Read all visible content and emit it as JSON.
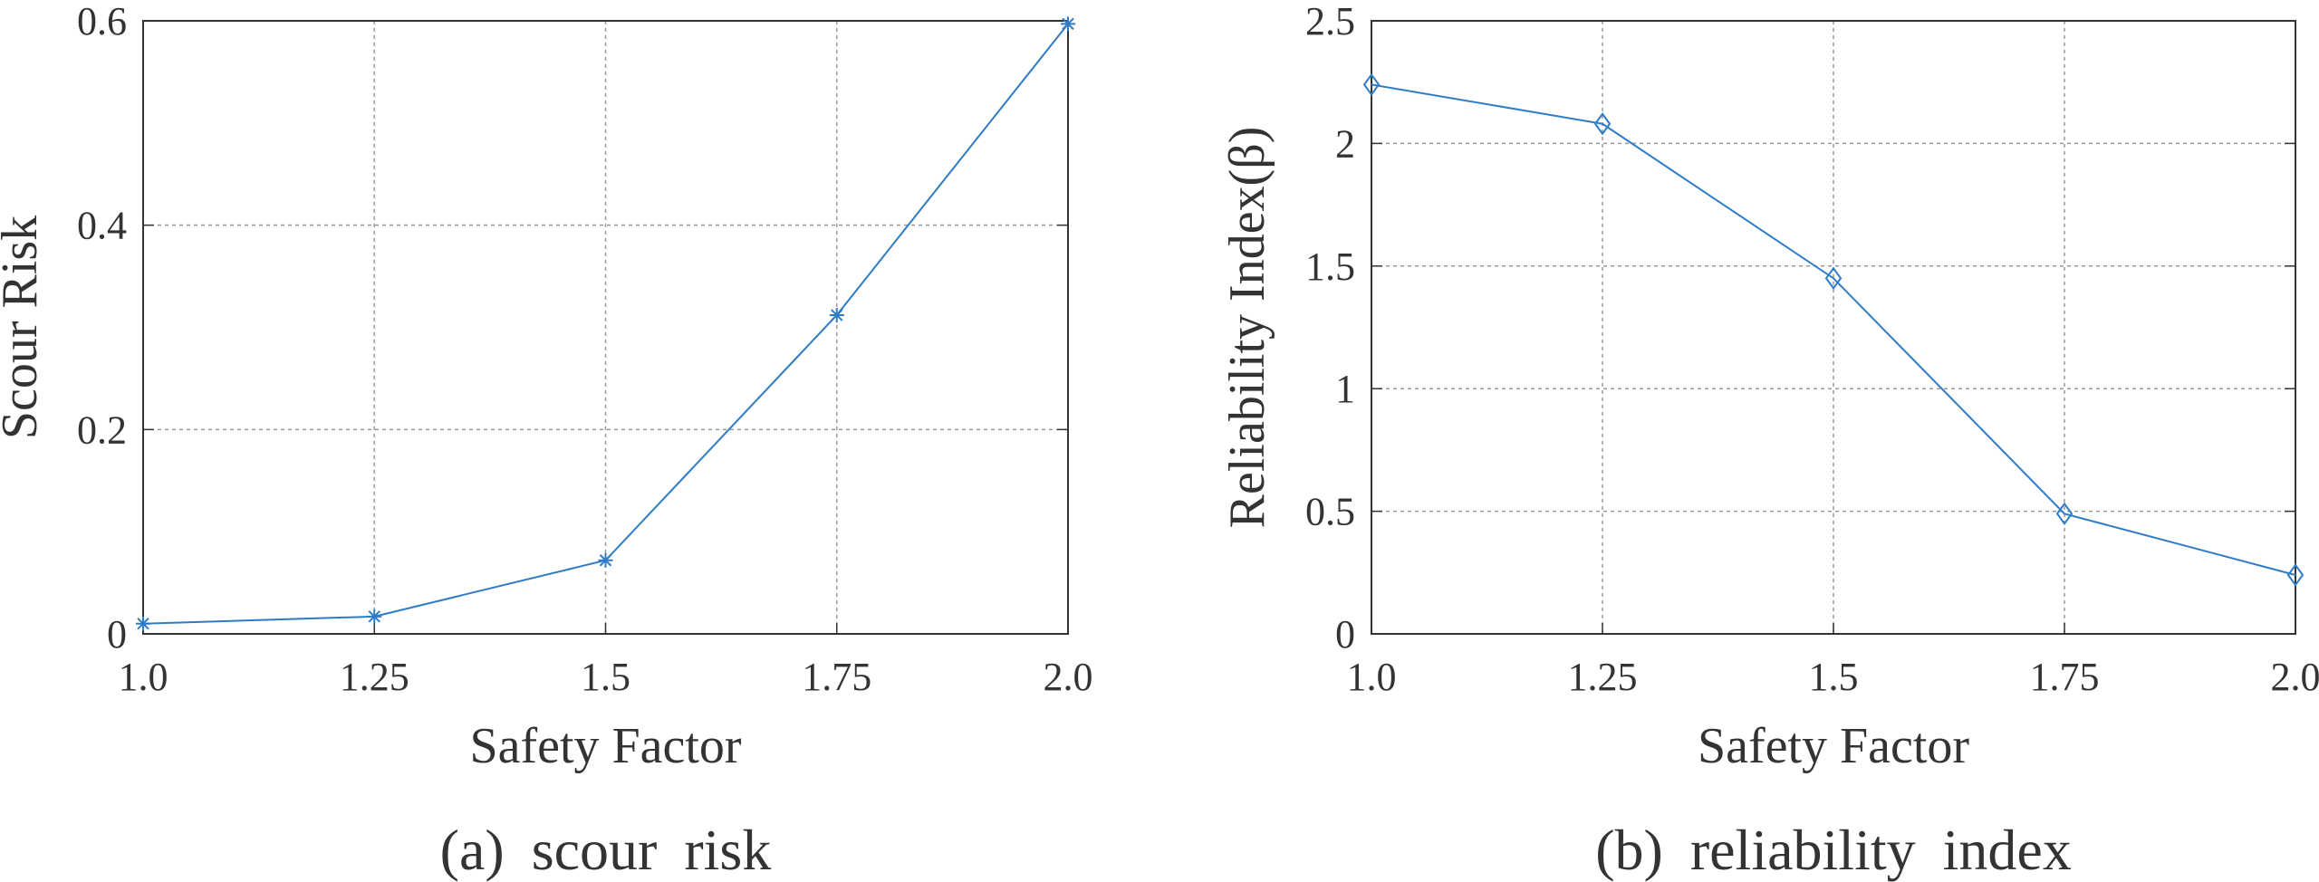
{
  "chart_data": [
    {
      "type": "line",
      "caption": "(a) scour risk",
      "xlabel": "Safety Factor",
      "ylabel": "Scour Risk",
      "x": [
        1,
        1.25,
        1.5,
        1.75,
        2
      ],
      "series": [
        {
          "color": "#2f7cc6",
          "marker": "star",
          "values": [
            0.01,
            0.017,
            0.072,
            0.312,
            0.597
          ]
        }
      ],
      "xlim": [
        1,
        2
      ],
      "xticks": [
        {
          "value": 1,
          "label": "1.0"
        },
        1.25,
        1.5,
        1.75,
        {
          "value": 2,
          "label": "2.0"
        }
      ],
      "ylim": [
        0,
        0.6
      ],
      "yticks": [
        0,
        0.2,
        0.4,
        0.6
      ],
      "grid": true
    },
    {
      "type": "line",
      "caption": "(b) reliability index",
      "xlabel": "Safety Factor",
      "ylabel": "Reliability Index(β)",
      "x": [
        1,
        1.25,
        1.5,
        1.75,
        2
      ],
      "series": [
        {
          "color": "#2f7cc6",
          "marker": "diamond",
          "values": [
            2.24,
            2.08,
            1.45,
            0.49,
            0.24
          ]
        }
      ],
      "xlim": [
        1,
        2
      ],
      "xticks": [
        {
          "value": 1,
          "label": "1.0"
        },
        1.25,
        1.5,
        1.75,
        {
          "value": 2,
          "label": "2.0"
        }
      ],
      "ylim": [
        0,
        2.5
      ],
      "yticks": [
        0,
        0.5,
        1,
        1.5,
        2,
        2.5
      ],
      "grid": true
    }
  ]
}
